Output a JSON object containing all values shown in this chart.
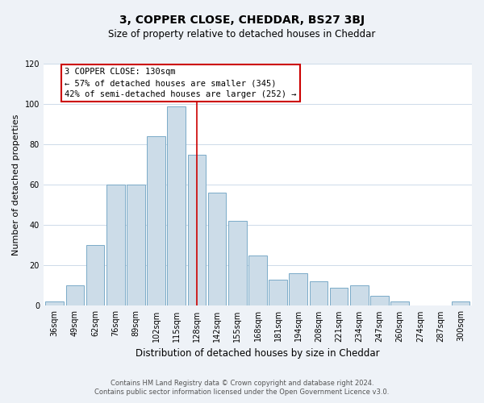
{
  "title": "3, COPPER CLOSE, CHEDDAR, BS27 3BJ",
  "subtitle": "Size of property relative to detached houses in Cheddar",
  "xlabel": "Distribution of detached houses by size in Cheddar",
  "ylabel": "Number of detached properties",
  "bar_labels": [
    "36sqm",
    "49sqm",
    "62sqm",
    "76sqm",
    "89sqm",
    "102sqm",
    "115sqm",
    "128sqm",
    "142sqm",
    "155sqm",
    "168sqm",
    "181sqm",
    "194sqm",
    "208sqm",
    "221sqm",
    "234sqm",
    "247sqm",
    "260sqm",
    "274sqm",
    "287sqm",
    "300sqm"
  ],
  "bar_values": [
    2,
    10,
    30,
    60,
    60,
    84,
    99,
    75,
    56,
    42,
    25,
    13,
    16,
    12,
    9,
    10,
    5,
    2,
    0,
    0,
    2
  ],
  "bar_color": "#ccdce8",
  "bar_edge_color": "#7aaac8",
  "vline_index": 7,
  "vline_color": "#cc0000",
  "annotation_title": "3 COPPER CLOSE: 130sqm",
  "annotation_line1": "← 57% of detached houses are smaller (345)",
  "annotation_line2": "42% of semi-detached houses are larger (252) →",
  "annotation_box_facecolor": "#ffffff",
  "annotation_box_edgecolor": "#cc0000",
  "ylim": [
    0,
    120
  ],
  "yticks": [
    0,
    20,
    40,
    60,
    80,
    100,
    120
  ],
  "footnote1": "Contains HM Land Registry data © Crown copyright and database right 2024.",
  "footnote2": "Contains public sector information licensed under the Open Government Licence v3.0.",
  "fig_facecolor": "#eef2f7",
  "plot_facecolor": "#ffffff",
  "grid_color": "#c5d5e5",
  "title_fontsize": 10,
  "subtitle_fontsize": 8.5,
  "ylabel_fontsize": 8,
  "xlabel_fontsize": 8.5,
  "tick_fontsize": 7,
  "annotation_fontsize": 7.5,
  "footnote_fontsize": 6
}
